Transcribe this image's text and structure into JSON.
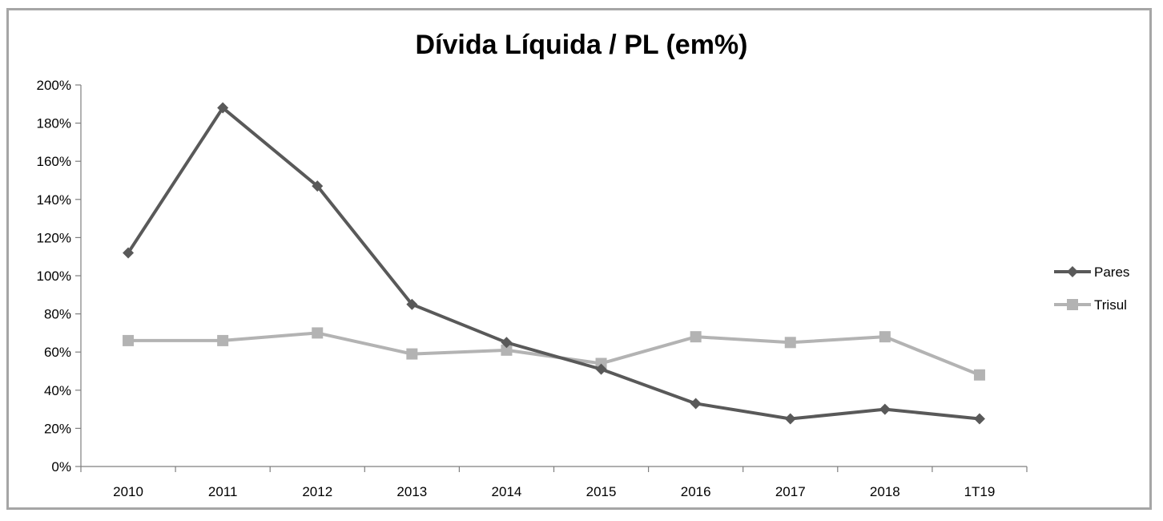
{
  "chart_data": {
    "type": "line",
    "title": "Dívida Líquida / PL (em%)",
    "xlabel": "",
    "ylabel": "",
    "categories": [
      "2010",
      "2011",
      "2012",
      "2013",
      "2014",
      "2015",
      "2016",
      "2017",
      "2018",
      "1T19"
    ],
    "ylim": [
      0,
      200
    ],
    "yticks": [
      0,
      20,
      40,
      60,
      80,
      100,
      120,
      140,
      160,
      180,
      200
    ],
    "ytick_labels": [
      "0%",
      "20%",
      "40%",
      "60%",
      "80%",
      "100%",
      "120%",
      "140%",
      "160%",
      "180%",
      "200%"
    ],
    "grid": false,
    "legend_position": "right",
    "series": [
      {
        "name": "Pares",
        "color": "#595959",
        "marker": "diamond",
        "values": [
          112,
          188,
          147,
          85,
          65,
          51,
          33,
          25,
          30,
          25
        ]
      },
      {
        "name": "Trisul",
        "color": "#b3b3b3",
        "marker": "square",
        "values": [
          66,
          66,
          70,
          59,
          61,
          54,
          68,
          65,
          68,
          48
        ]
      }
    ]
  }
}
